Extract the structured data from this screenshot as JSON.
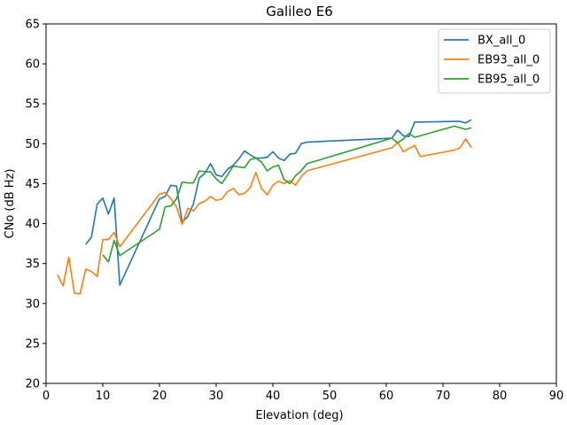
{
  "chart_data": {
    "type": "line",
    "title": "Galileo E6",
    "xlabel": "Elevation (deg)",
    "ylabel": "CNo (dB Hz)",
    "xlim": [
      0,
      90
    ],
    "ylim": [
      20,
      65
    ],
    "xticks": [
      0,
      10,
      20,
      30,
      40,
      50,
      60,
      70,
      80,
      90
    ],
    "yticks": [
      20,
      25,
      30,
      35,
      40,
      45,
      50,
      55,
      60,
      65
    ],
    "grid": false,
    "legend_position": "top-right",
    "series": [
      {
        "name": "BX_all_0",
        "color": "#1f77b4",
        "points": [
          [
            7,
            37.4
          ],
          [
            8,
            38.3
          ],
          [
            9,
            42.4
          ],
          [
            10,
            43.2
          ],
          [
            11,
            41.2
          ],
          [
            12,
            43.2
          ],
          [
            13,
            32.3
          ],
          [
            20,
            43.1
          ],
          [
            21,
            43.4
          ],
          [
            22,
            44.8
          ],
          [
            23,
            44.7
          ],
          [
            24,
            40.2
          ],
          [
            25,
            40.9
          ],
          [
            26,
            42.5
          ],
          [
            27,
            45.7
          ],
          [
            28,
            46.3
          ],
          [
            29,
            47.5
          ],
          [
            30,
            46.1
          ],
          [
            31,
            45.9
          ],
          [
            32,
            46.8
          ],
          [
            33,
            47.3
          ],
          [
            34,
            48.1
          ],
          [
            35,
            49.1
          ],
          [
            36,
            48.6
          ],
          [
            37,
            48.2
          ],
          [
            38,
            48.2
          ],
          [
            39,
            48.3
          ],
          [
            40,
            49.0
          ],
          [
            41,
            48.2
          ],
          [
            42,
            47.9
          ],
          [
            43,
            48.7
          ],
          [
            44,
            48.8
          ],
          [
            45,
            50.0
          ],
          [
            46,
            50.2
          ],
          [
            61,
            50.7
          ],
          [
            62,
            51.7
          ],
          [
            63,
            51.0
          ],
          [
            64,
            50.9
          ],
          [
            65,
            52.7
          ],
          [
            72,
            52.8
          ],
          [
            73,
            52.8
          ],
          [
            74,
            52.6
          ],
          [
            75,
            53.0
          ]
        ]
      },
      {
        "name": "EB93_all_0",
        "color": "#ff7f0e",
        "points": [
          [
            2,
            33.6
          ],
          [
            3,
            32.2
          ],
          [
            4,
            35.8
          ],
          [
            5,
            31.3
          ],
          [
            6,
            31.2
          ],
          [
            7,
            34.3
          ],
          [
            8,
            34.0
          ],
          [
            9,
            33.4
          ],
          [
            10,
            38.0
          ],
          [
            11,
            38.0
          ],
          [
            12,
            38.9
          ],
          [
            13,
            37.1
          ],
          [
            20,
            43.7
          ],
          [
            21,
            43.9
          ],
          [
            22,
            43.1
          ],
          [
            23,
            42.1
          ],
          [
            24,
            39.9
          ],
          [
            25,
            41.9
          ],
          [
            26,
            41.6
          ],
          [
            27,
            42.5
          ],
          [
            28,
            42.8
          ],
          [
            29,
            43.4
          ],
          [
            30,
            42.9
          ],
          [
            31,
            43.1
          ],
          [
            32,
            44.0
          ],
          [
            33,
            44.4
          ],
          [
            34,
            43.6
          ],
          [
            35,
            43.8
          ],
          [
            36,
            44.5
          ],
          [
            37,
            46.4
          ],
          [
            38,
            44.4
          ],
          [
            39,
            43.6
          ],
          [
            40,
            44.8
          ],
          [
            41,
            45.3
          ],
          [
            42,
            45.0
          ],
          [
            43,
            45.4
          ],
          [
            44,
            44.8
          ],
          [
            45,
            45.9
          ],
          [
            46,
            46.6
          ],
          [
            61,
            49.5
          ],
          [
            62,
            50.2
          ],
          [
            63,
            49.0
          ],
          [
            64,
            49.4
          ],
          [
            65,
            49.8
          ],
          [
            66,
            48.4
          ],
          [
            72,
            49.2
          ],
          [
            73,
            49.5
          ],
          [
            74,
            50.6
          ],
          [
            75,
            49.5
          ]
        ]
      },
      {
        "name": "EB95_all_0",
        "color": "#2ca02c",
        "points": [
          [
            10,
            36.1
          ],
          [
            11,
            35.2
          ],
          [
            12,
            37.9
          ],
          [
            13,
            36.0
          ],
          [
            20,
            39.3
          ],
          [
            21,
            42.1
          ],
          [
            22,
            42.2
          ],
          [
            23,
            43.1
          ],
          [
            24,
            45.2
          ],
          [
            25,
            45.1
          ],
          [
            26,
            45.1
          ],
          [
            27,
            46.6
          ],
          [
            28,
            46.5
          ],
          [
            29,
            46.5
          ],
          [
            30,
            45.6
          ],
          [
            31,
            45.0
          ],
          [
            32,
            46.1
          ],
          [
            33,
            47.2
          ],
          [
            34,
            47.1
          ],
          [
            35,
            47.0
          ],
          [
            36,
            48.0
          ],
          [
            37,
            48.2
          ],
          [
            38,
            47.7
          ],
          [
            39,
            46.6
          ],
          [
            40,
            47.1
          ],
          [
            41,
            47.3
          ],
          [
            42,
            45.5
          ],
          [
            43,
            45.0
          ],
          [
            44,
            46.0
          ],
          [
            45,
            46.6
          ],
          [
            46,
            47.5
          ],
          [
            61,
            50.7
          ],
          [
            62,
            50.1
          ],
          [
            63,
            50.6
          ],
          [
            64,
            51.3
          ],
          [
            65,
            50.8
          ],
          [
            72,
            52.2
          ],
          [
            73,
            52.0
          ],
          [
            74,
            51.8
          ],
          [
            75,
            52.0
          ]
        ]
      }
    ]
  }
}
